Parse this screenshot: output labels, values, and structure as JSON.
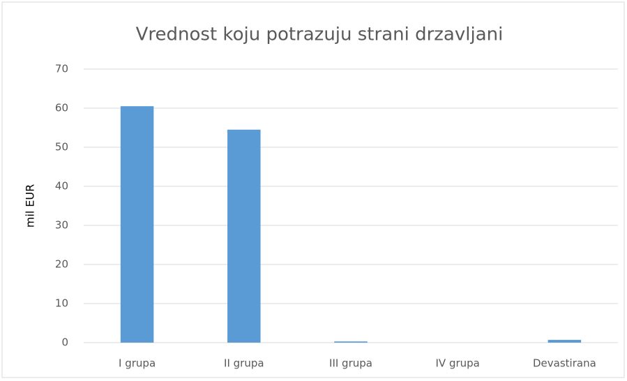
{
  "chart_data": {
    "type": "bar",
    "title": "Vrednost koju potrazuju strani drzavljani",
    "y_label": "mil EUR",
    "categories": [
      "I grupa",
      "II grupa",
      "III grupa",
      "IV grupa",
      "Devastirana"
    ],
    "values": [
      60.5,
      54.5,
      0.3,
      0,
      0.7
    ],
    "color": "#5b9bd5",
    "ylim": [
      0,
      70
    ],
    "yticks": [
      0,
      10,
      20,
      30,
      40,
      50,
      60,
      70
    ],
    "grid": true
  }
}
